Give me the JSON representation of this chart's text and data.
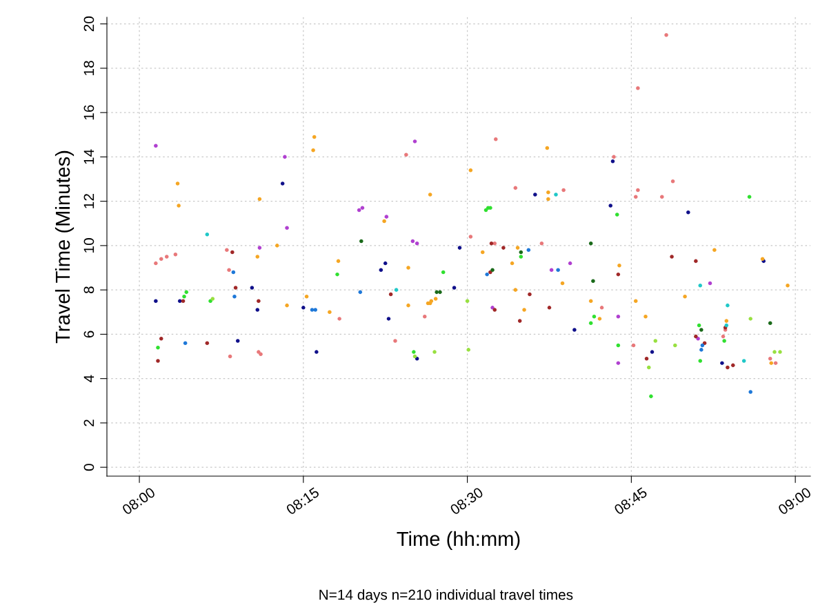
{
  "chart_data": {
    "type": "scatter",
    "xlabel": "Time (hh:mm)",
    "ylabel": "Travel Time (Minutes)",
    "annotations": [
      "N=14 days n=210 individual travel times"
    ],
    "xlim": [
      7.9505,
      9.023
    ],
    "ylim": [
      -0.4,
      20.3
    ],
    "xticks": [
      {
        "value": 8,
        "label": "08:00"
      },
      {
        "value": 8.25,
        "label": "08:15"
      },
      {
        "value": 8.5,
        "label": "08:30"
      },
      {
        "value": 8.75,
        "label": "08:45"
      },
      {
        "value": 9,
        "label": "09:00"
      }
    ],
    "yticks": [
      0,
      2,
      4,
      6,
      8,
      10,
      12,
      14,
      16,
      18,
      20
    ],
    "grid": true,
    "marker": "circle",
    "series": [
      {
        "color": "#b040d0",
        "x": [
          8.025,
          8.1833,
          8.2217,
          8.225,
          8.335,
          8.34,
          8.3767,
          8.42,
          8.4167,
          8.4233,
          8.5383,
          8.6283,
          8.6567,
          8.73,
          8.73,
          8.8517,
          8.87
        ],
        "values": [
          14.5,
          9.9,
          14.0,
          10.8,
          11.6,
          11.7,
          11.3,
          14.7,
          10.2,
          10.1,
          7.2,
          8.9,
          9.2,
          6.8,
          4.7,
          5.8,
          8.3
        ]
      },
      {
        "color": "#e8787a",
        "x": [
          8.025,
          8.0333,
          8.0417,
          8.055,
          8.1333,
          8.1367,
          8.1383,
          8.1817,
          8.185,
          8.305,
          8.39,
          8.4067,
          8.435,
          8.505,
          8.5417,
          8.5433,
          8.5733,
          8.6133,
          8.6467,
          8.705,
          8.7233,
          8.7533,
          8.7567,
          8.76,
          8.76,
          8.7967,
          8.8033,
          8.8133,
          8.89,
          8.8933,
          8.9617,
          8.97
        ],
        "values": [
          9.2,
          9.4,
          9.5,
          9.6,
          9.8,
          8.9,
          5.0,
          5.2,
          5.1,
          6.7,
          5.7,
          14.1,
          6.8,
          10.4,
          10.1,
          14.8,
          12.6,
          10.1,
          12.5,
          7.2,
          14.0,
          5.5,
          12.2,
          12.5,
          17.1,
          12.2,
          19.5,
          12.9,
          5.9,
          6.2,
          4.9,
          4.7
        ]
      },
      {
        "color": "#10108a",
        "x": [
          8.025,
          8.0617,
          8.15,
          8.1717,
          8.18,
          8.2183,
          8.25,
          8.27,
          8.3683,
          8.375,
          8.38,
          8.4233,
          8.48,
          8.4883,
          8.6033,
          8.6633,
          8.7183,
          8.7217,
          8.7817,
          8.8367,
          8.8883,
          8.9517
        ],
        "values": [
          7.5,
          7.5,
          5.7,
          8.1,
          7.1,
          12.8,
          7.2,
          5.2,
          8.9,
          9.2,
          6.7,
          4.9,
          8.1,
          9.9,
          12.3,
          6.2,
          11.8,
          13.8,
          5.2,
          11.5,
          4.7,
          9.3
        ]
      },
      {
        "color": "#a02828",
        "x": [
          8.0333,
          8.0283,
          8.0667,
          8.1033,
          8.1417,
          8.1467,
          8.1817,
          8.3833,
          8.535,
          8.5367,
          8.5417,
          8.555,
          8.58,
          8.595,
          8.625,
          8.73,
          8.7733,
          8.8117,
          8.8483,
          8.8483,
          8.8617,
          8.8933,
          8.8967,
          8.905
        ],
        "values": [
          5.8,
          4.8,
          7.5,
          5.6,
          9.7,
          8.1,
          7.5,
          7.8,
          8.8,
          10.1,
          7.1,
          9.9,
          6.6,
          7.8,
          7.2,
          8.7,
          4.9,
          9.5,
          9.3,
          5.9,
          5.6,
          6.3,
          4.5,
          4.6
        ]
      },
      {
        "color": "#30e030",
        "x": [
          8.0283,
          8.0683,
          8.0717,
          8.1083,
          8.3017,
          8.4183,
          8.4633,
          8.5283,
          8.5317,
          8.535,
          8.5817,
          8.6883,
          8.6933,
          8.7283,
          8.73,
          8.78,
          8.8533,
          8.855,
          8.8917,
          8.93
        ],
        "values": [
          5.4,
          7.7,
          7.9,
          7.5,
          8.7,
          5.2,
          8.8,
          11.6,
          11.7,
          11.7,
          9.5,
          6.5,
          6.8,
          11.4,
          5.5,
          3.2,
          6.4,
          4.8,
          5.7,
          12.2
        ]
      },
      {
        "color": "#f5a623",
        "x": [
          8.0583,
          8.06,
          8.18,
          8.1833,
          8.21,
          8.225,
          8.255,
          8.2667,
          8.265,
          8.29,
          8.3033,
          8.3733,
          8.41,
          8.41,
          8.44,
          8.4433,
          8.445,
          8.4433,
          8.4517,
          8.505,
          8.5233,
          8.5683,
          8.5733,
          8.5767,
          8.5867,
          8.6217,
          8.6233,
          8.6233,
          8.645,
          8.6883,
          8.7017,
          8.7317,
          8.7567,
          8.7717,
          8.8317,
          8.8767,
          8.895,
          8.95,
          8.9633,
          8.9883
        ],
        "values": [
          12.8,
          11.8,
          9.5,
          12.1,
          10.0,
          7.3,
          7.7,
          14.9,
          14.3,
          7.0,
          9.3,
          11.1,
          9.0,
          7.3,
          7.4,
          7.4,
          7.5,
          12.3,
          7.6,
          13.4,
          9.7,
          9.2,
          8.0,
          9.9,
          7.1,
          14.4,
          12.4,
          12.1,
          8.3,
          7.5,
          6.7,
          9.1,
          7.5,
          6.8,
          7.7,
          9.8,
          6.6,
          9.4,
          4.7,
          8.2
        ]
      },
      {
        "color": "#1e78d8",
        "x": [
          8.07,
          8.1433,
          8.145,
          8.2633,
          8.2683,
          8.3367,
          8.53,
          8.5933,
          8.6383,
          8.8583,
          8.8567,
          8.9317
        ],
        "values": [
          5.6,
          8.8,
          7.7,
          7.1,
          7.1,
          7.9,
          8.7,
          9.8,
          8.9,
          5.5,
          5.3,
          3.4
        ]
      },
      {
        "color": "#20c8c8",
        "x": [
          8.1033,
          8.3917,
          8.635,
          8.855,
          8.895,
          8.8967,
          8.9217
        ],
        "values": [
          10.5,
          8.0,
          12.3,
          8.2,
          6.4,
          7.3,
          4.8
        ]
      },
      {
        "color": "#98e040",
        "x": [
          8.1117,
          8.42,
          8.45,
          8.5,
          8.5017,
          8.7767,
          8.7867,
          8.8167,
          8.9317,
          8.9683,
          8.9767
        ],
        "values": [
          7.6,
          5.0,
          5.2,
          7.5,
          5.3,
          4.5,
          5.7,
          5.5,
          6.7,
          5.2,
          5.2
        ]
      },
      {
        "color": "#1a6a1a",
        "x": [
          8.3383,
          8.4533,
          8.4583,
          8.5383,
          8.5817,
          8.6883,
          8.6917,
          8.8567,
          8.9617
        ],
        "values": [
          10.2,
          7.9,
          7.9,
          8.9,
          9.7,
          10.1,
          8.4,
          6.2,
          6.5
        ]
      }
    ]
  }
}
